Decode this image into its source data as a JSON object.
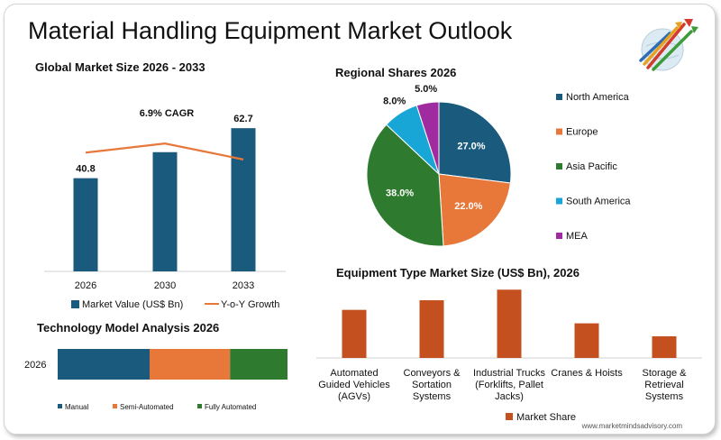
{
  "title": "Material Handling Equipment Market Outlook",
  "footer": "www.marketmindsadvisory.com",
  "colors": {
    "dark_blue": "#1a5a7d",
    "orange": "#e8773a",
    "green": "#2e7a2e",
    "light_blue": "#17a6d6",
    "purple": "#a02ba0",
    "rust": "#c4501f"
  },
  "chart_data": [
    {
      "type": "bar",
      "title": "Global Market Size 2026 - 2033",
      "categories": [
        "2026",
        "2030",
        "2033"
      ],
      "series": [
        {
          "name": "Market Value (US$ Bn)",
          "values": [
            40.8,
            52.2,
            62.7
          ]
        },
        {
          "name": "Y-o-Y Growth",
          "kind": "line",
          "values": [
            52.0,
            56.0,
            49.0
          ]
        }
      ],
      "data_labels": [
        "40.8",
        "",
        "62.7"
      ],
      "annotation": "6.9% CAGR",
      "ylim": [
        0,
        75
      ],
      "legend": "bottom",
      "grid": false
    },
    {
      "type": "pie",
      "title": "Regional Shares 2026",
      "labels": [
        "North America",
        "Europe",
        "Asia Pacific",
        "South America",
        "MEA"
      ],
      "values": [
        27.0,
        22.0,
        38.0,
        8.0,
        5.0
      ],
      "value_labels": [
        "27.0%",
        "22.0%",
        "38.0%",
        "8.0%",
        "5.0%"
      ],
      "legend": "right"
    },
    {
      "type": "bar",
      "orientation": "horizontal",
      "stacked": true,
      "title": "Technology Model Analysis 2026",
      "categories": [
        "2026"
      ],
      "series": [
        {
          "name": "Manual",
          "values": [
            40
          ]
        },
        {
          "name": "Semi-Automated",
          "values": [
            35
          ]
        },
        {
          "name": "Fully Automated",
          "values": [
            25
          ]
        }
      ],
      "xlim": [
        0,
        100
      ],
      "legend": "bottom"
    },
    {
      "type": "bar",
      "title": "Equipment Type Market Size (US$ Bn), 2026",
      "categories": [
        "Automated Guided Vehicles (AGVs)",
        "Conveyors & Sortation Systems",
        "Industrial Trucks (Forklifts, Pallet Jacks)",
        "Cranes & Hoists",
        "Storage & Retrieval Systems"
      ],
      "category_lines": [
        [
          "Automated",
          "Guided Vehicles",
          "(AGVs)"
        ],
        [
          "Conveyors &",
          "Sortation",
          "Systems"
        ],
        [
          "Industrial Trucks",
          "(Forklifts, Pallet",
          "Jacks)"
        ],
        [
          "Cranes & Hoists"
        ],
        [
          "Storage &",
          "Retrieval",
          "Systems"
        ]
      ],
      "series": [
        {
          "name": "Market Share",
          "values": [
            10.0,
            12.0,
            14.2,
            7.2,
            4.5
          ]
        }
      ],
      "ylim": [
        0,
        15
      ],
      "legend": "bottom"
    }
  ]
}
